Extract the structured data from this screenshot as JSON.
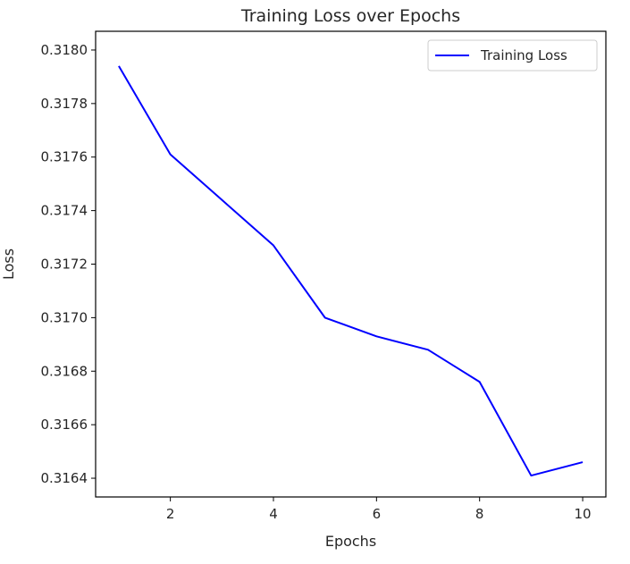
{
  "chart_data": {
    "type": "line",
    "title": "Training Loss over Epochs",
    "xlabel": "Epochs",
    "ylabel": "Loss",
    "xlim": [
      0.55,
      10.45
    ],
    "ylim": [
      0.31633,
      0.31807
    ],
    "x_ticks": [
      2,
      4,
      6,
      8,
      10
    ],
    "x_tick_labels": [
      "2",
      "4",
      "6",
      "8",
      "10"
    ],
    "y_ticks": [
      0.3164,
      0.3166,
      0.3168,
      0.317,
      0.3172,
      0.3174,
      0.3176,
      0.3178,
      0.318
    ],
    "y_tick_labels": [
      "0.3164",
      "0.3166",
      "0.3168",
      "0.3170",
      "0.3172",
      "0.3174",
      "0.3176",
      "0.3178",
      "0.3180"
    ],
    "grid": false,
    "legend_position": "top-right",
    "series": [
      {
        "name": "Training Loss",
        "color": "#0000ff",
        "x": [
          1,
          2,
          3,
          4,
          5,
          6,
          7,
          8,
          9,
          10
        ],
        "y": [
          0.31794,
          0.31761,
          0.31744,
          0.31727,
          0.317,
          0.31693,
          0.31688,
          0.31676,
          0.31641,
          0.31646
        ]
      }
    ]
  }
}
